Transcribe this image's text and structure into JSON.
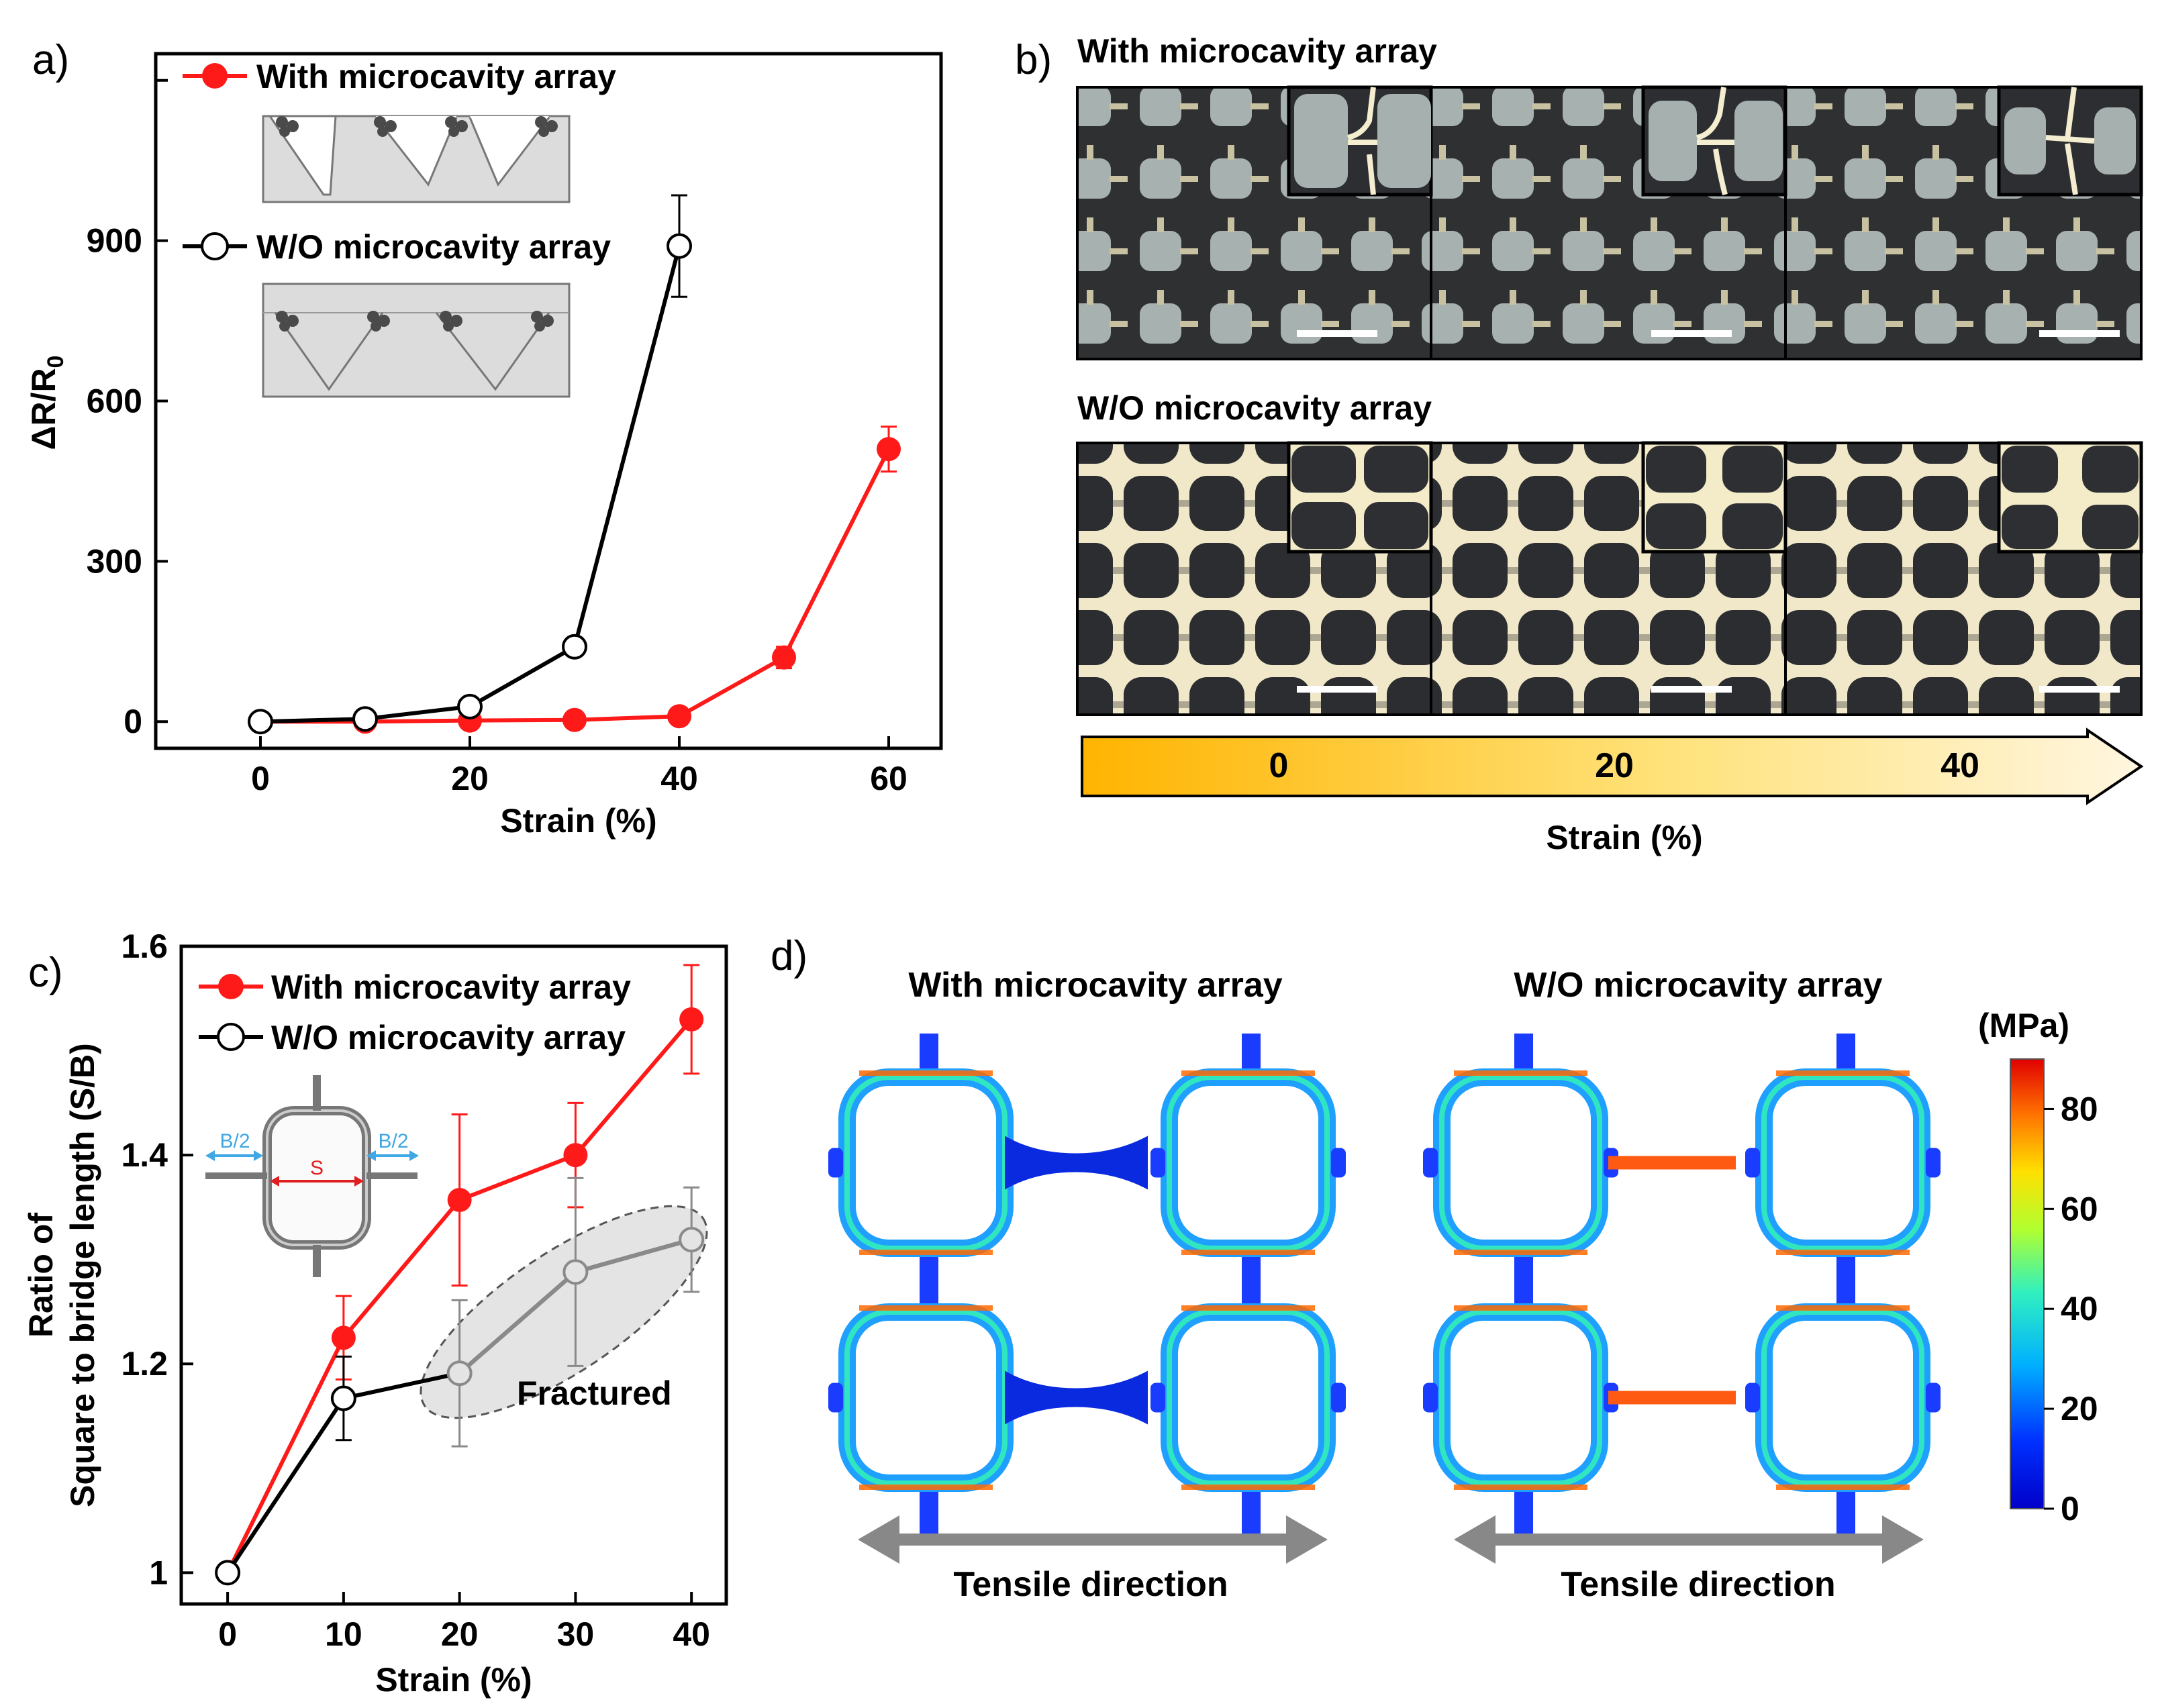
{
  "panels": {
    "a": {
      "label": "a)",
      "chart_data": {
        "type": "line",
        "xlabel": "Strain (%)",
        "ylabel_main": "ΔR/R",
        "ylabel_sub": "0",
        "xlim": [
          -10,
          65
        ],
        "ylim": [
          -50,
          1250
        ],
        "xticks": [
          "0",
          "20",
          "40",
          "60"
        ],
        "yticks": [
          "0",
          "300",
          "600",
          "900"
        ],
        "series": [
          {
            "name": "With microcavity array",
            "color": "#ff1a1a",
            "marker": "filled",
            "x": [
              0,
              10,
              20,
              30,
              40,
              50,
              60
            ],
            "y": [
              0,
              0,
              2,
              3,
              10,
              120,
              510
            ],
            "err": [
              0,
              0,
              0,
              0,
              0,
              20,
              42
            ]
          },
          {
            "name": "W/O microcavity array",
            "color": "#000000",
            "marker": "open",
            "x": [
              0,
              10,
              20,
              30,
              40
            ],
            "y": [
              0,
              5,
              28,
              140,
              890
            ],
            "err": [
              0,
              15,
              15,
              0,
              95
            ]
          }
        ]
      }
    },
    "b": {
      "label": "b)",
      "with_title": "With microcavity array",
      "wo_title": "W/O microcavity array",
      "arrow_values": [
        "0",
        "20",
        "40"
      ],
      "xlabel": "Strain (%)",
      "colors": {
        "arrow_start": "#ffb400",
        "arrow_end": "#fff4d6",
        "dark": "#2f3033",
        "pad_light": "#a9b3b1"
      }
    },
    "c": {
      "label": "c)",
      "chart_data": {
        "type": "line",
        "xlabel": "Strain (%)",
        "ylabel_line1": "Ratio of",
        "ylabel_line2": "Square to bridge length (S/B)",
        "xlim": [
          -4,
          43
        ],
        "ylim": [
          0.97,
          1.6
        ],
        "xticks": [
          "0",
          "10",
          "20",
          "30",
          "40"
        ],
        "yticks": [
          "1",
          "1.2",
          "1.4",
          "1.6"
        ],
        "series": [
          {
            "name": "With microcavity array",
            "color": "#ff1a1a",
            "marker": "filled",
            "x": [
              0,
              10,
              20,
              30,
              40
            ],
            "y": [
              1.0,
              1.225,
              1.357,
              1.4,
              1.53
            ],
            "err": [
              0,
              0.04,
              0.082,
              0.05,
              0.052
            ]
          },
          {
            "name": "W/O microcavity array",
            "color": "#000000",
            "marker": "open",
            "x": [
              0,
              10,
              20,
              30,
              40
            ],
            "y": [
              1.0,
              1.167,
              1.191,
              1.288,
              1.319
            ],
            "err": [
              0,
              0.04,
              0.07,
              0.09,
              0.05
            ]
          }
        ],
        "annotation": "Fractured",
        "inset_labels": {
          "left": "B/2",
          "center": "S",
          "right": "B/2"
        }
      }
    },
    "d": {
      "label": "d)",
      "with_title": "With microcavity array",
      "wo_title": "W/O microcavity array",
      "direction_label": "Tensile direction",
      "colorbar": {
        "unit": "(MPa)",
        "ticks": [
          "0",
          "20",
          "40",
          "60",
          "80"
        ],
        "min": 0,
        "max": 90
      }
    }
  }
}
